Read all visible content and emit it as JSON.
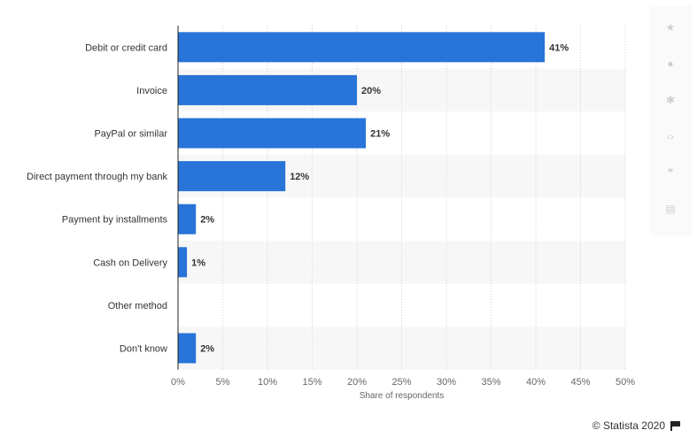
{
  "chart_data": {
    "type": "bar",
    "orientation": "horizontal",
    "categories": [
      "Debit or credit card",
      "Invoice",
      "PayPal or similar",
      "Direct payment through my bank",
      "Payment by installments",
      "Cash on Delivery",
      "Other method",
      "Don't know"
    ],
    "values": [
      41,
      20,
      21,
      12,
      2,
      1,
      0,
      2
    ],
    "data_labels": [
      "41%",
      "20%",
      "21%",
      "12%",
      "2%",
      "1%",
      "",
      "2%"
    ],
    "xlabel": "Share of respondents",
    "xlim": [
      0,
      50
    ],
    "xticks": [
      0,
      5,
      10,
      15,
      20,
      25,
      30,
      35,
      40,
      45,
      50
    ],
    "xtick_labels": [
      "0%",
      "5%",
      "10%",
      "15%",
      "20%",
      "25%",
      "30%",
      "35%",
      "40%",
      "45%",
      "50%"
    ],
    "grid": true,
    "bar_color": "#2874d8"
  },
  "toolbar": {
    "icons": [
      "star-icon",
      "bell-icon",
      "gear-icon",
      "share-icon",
      "quote-icon",
      "print-icon"
    ]
  },
  "credit": {
    "text": "© Statista 2020"
  }
}
